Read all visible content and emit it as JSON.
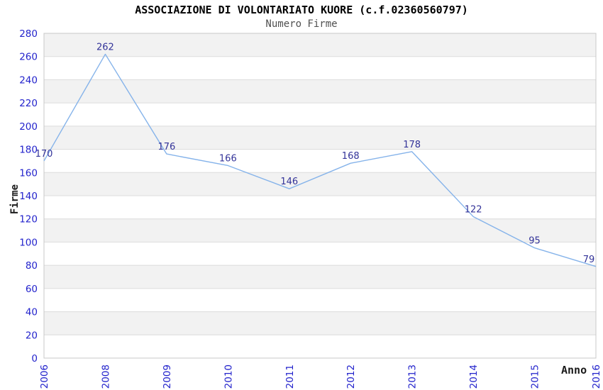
{
  "page": {
    "background": "#ffffff"
  },
  "chart_data": {
    "type": "line",
    "title": "ASSOCIAZIONE DI VOLONTARIATO KUORE (c.f.02360560797)",
    "subtitle": "Numero Firme",
    "xlabel": "Anno",
    "ylabel": "Firme",
    "categories": [
      "2006",
      "2008",
      "2009",
      "2010",
      "2011",
      "2012",
      "2013",
      "2014",
      "2015",
      "2016"
    ],
    "series": [
      {
        "name": "Numero Firme",
        "values": [
          170,
          262,
          176,
          166,
          146,
          168,
          178,
          122,
          95,
          79
        ]
      }
    ],
    "ylim": [
      0,
      280
    ],
    "ytick_step": 20,
    "grid": "horizontal-bands",
    "legend": "none",
    "point_labels_visible": true,
    "colors": {
      "line": "#85b3ea",
      "point_label": "#333399",
      "tick_label": "#2323cc",
      "band": "#f2f2f2",
      "grid_line": "#dcdcdc",
      "frame": "#c8c8c8",
      "title": "#000000",
      "subtitle": "#505050",
      "axis_title": "#1a1a1a"
    }
  }
}
